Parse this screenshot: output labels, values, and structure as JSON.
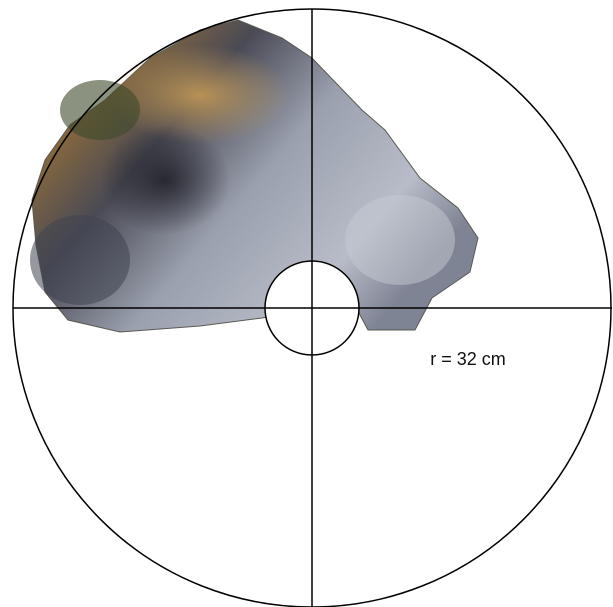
{
  "label": "r = 32 cm"
}
